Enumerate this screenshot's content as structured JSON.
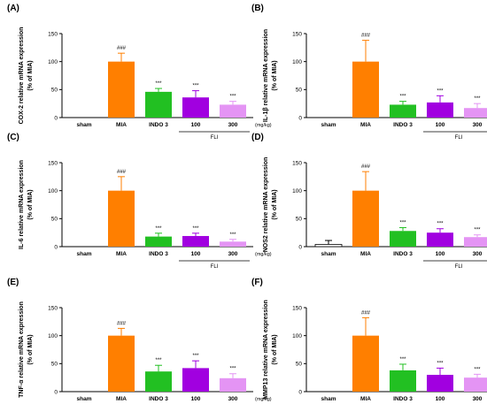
{
  "figure": {
    "unit_label": "(mg/kg)",
    "group_label": "FLI",
    "yaxis_unit_label": "(% of MIA)"
  },
  "colors": {
    "sham": "#ffffff",
    "MIA": "#ff7f00",
    "INDO 3": "#22c022",
    "100": "#a100e0",
    "300": "#e494f4",
    "axis": "#000000"
  },
  "chart_data": [
    {
      "panel": "(A)",
      "type": "bar",
      "ylabel": "COX-2 relative mRNA expression",
      "ylabel2": "(% of MIA)",
      "categories": [
        "sham",
        "MIA",
        "INDO 3",
        "100",
        "300"
      ],
      "values": [
        0,
        100,
        46,
        36,
        23
      ],
      "errors": [
        0,
        15,
        6,
        12,
        6
      ],
      "annotations": [
        "",
        "###",
        "***",
        "***",
        "***"
      ],
      "ylim": [
        0,
        150
      ],
      "yticks": [
        0,
        50,
        100,
        150
      ]
    },
    {
      "panel": "(B)",
      "type": "bar",
      "ylabel": "IL-1β relative mRNA expression",
      "ylabel2": "(% of MIA)",
      "categories": [
        "sham",
        "MIA",
        "INDO 3",
        "100",
        "300"
      ],
      "values": [
        0,
        100,
        23,
        27,
        17
      ],
      "errors": [
        0,
        38,
        6,
        12,
        8
      ],
      "annotations": [
        "",
        "###",
        "***",
        "***",
        "***"
      ],
      "ylim": [
        0,
        150
      ],
      "yticks": [
        0,
        50,
        100,
        150
      ]
    },
    {
      "panel": "(C)",
      "type": "bar",
      "ylabel": "IL-6 relative mRNA expression",
      "ylabel2": "(% of MIA)",
      "categories": [
        "sham",
        "MIA",
        "INDO 3",
        "100",
        "300"
      ],
      "values": [
        0,
        100,
        18,
        19,
        9
      ],
      "errors": [
        0,
        25,
        6,
        5,
        4
      ],
      "annotations": [
        "",
        "###",
        "***",
        "***",
        "***"
      ],
      "ylim": [
        0,
        150
      ],
      "yticks": [
        0,
        50,
        100,
        150
      ]
    },
    {
      "panel": "(D)",
      "type": "bar",
      "ylabel": "NOS2 relative mRNA expression",
      "ylabel2": "(% of MIA)",
      "categories": [
        "sham",
        "MIA",
        "INDO 3",
        "100",
        "300"
      ],
      "values": [
        4,
        100,
        28,
        25,
        17
      ],
      "errors": [
        7,
        34,
        6,
        7,
        4
      ],
      "annotations": [
        "",
        "###",
        "***",
        "***",
        "***"
      ],
      "ylim": [
        0,
        150
      ],
      "yticks": [
        0,
        50,
        100,
        150
      ]
    },
    {
      "panel": "(E)",
      "type": "bar",
      "ylabel": "TNF-α relative mRNA expression",
      "ylabel2": "(% of MIA)",
      "categories": [
        "sham",
        "MIA",
        "INDO 3",
        "100",
        "300"
      ],
      "values": [
        0,
        100,
        36,
        42,
        24
      ],
      "errors": [
        0,
        13,
        11,
        13,
        8
      ],
      "annotations": [
        "",
        "###",
        "***",
        "***",
        "***"
      ],
      "ylim": [
        0,
        150
      ],
      "yticks": [
        0,
        50,
        100,
        150
      ]
    },
    {
      "panel": "(F)",
      "type": "bar",
      "ylabel": "MMP13 relative mRNA expression",
      "ylabel2": "(% of MIA)",
      "categories": [
        "sham",
        "MIA",
        "INDO 3",
        "100",
        "300"
      ],
      "values": [
        0,
        100,
        38,
        30,
        25
      ],
      "errors": [
        0,
        32,
        11,
        12,
        6
      ],
      "annotations": [
        "",
        "###",
        "***",
        "***",
        "***"
      ],
      "ylim": [
        0,
        150
      ],
      "yticks": [
        0,
        50,
        100,
        150
      ]
    }
  ]
}
